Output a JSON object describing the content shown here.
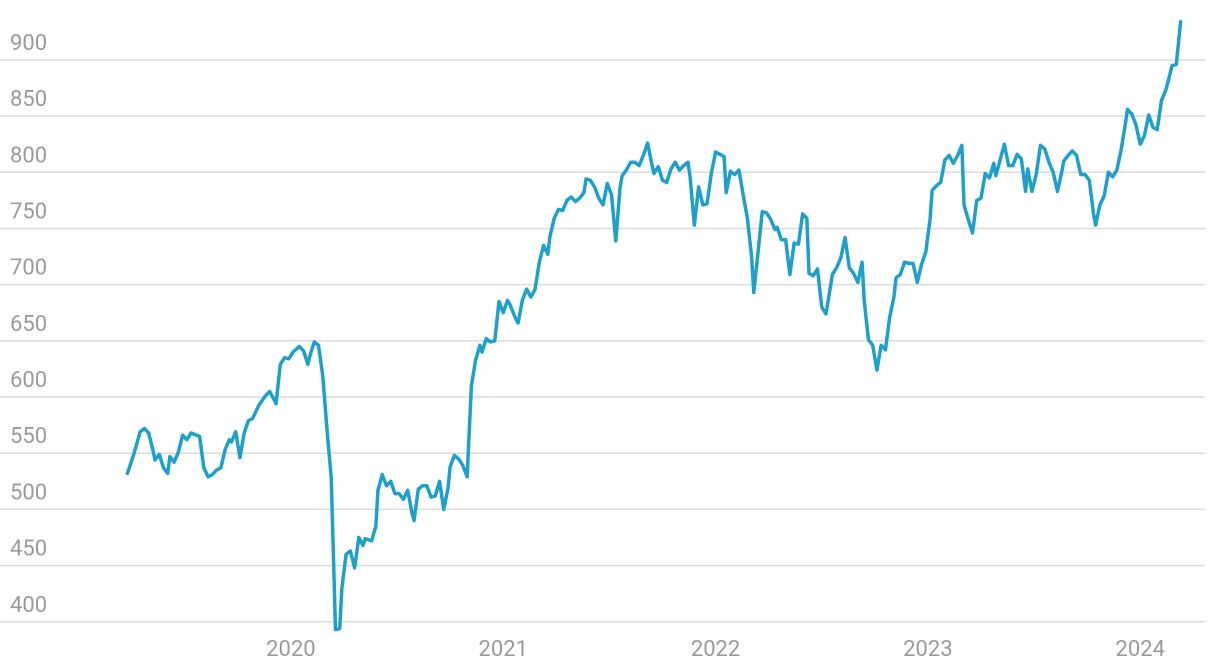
{
  "chart_data": {
    "type": "line",
    "x": [
      2019.23,
      2019.26,
      2019.29,
      2019.31,
      2019.33,
      2019.35,
      2019.36,
      2019.38,
      2019.4,
      2019.42,
      2019.43,
      2019.45,
      2019.47,
      2019.49,
      2019.51,
      2019.53,
      2019.57,
      2019.59,
      2019.61,
      2019.63,
      2019.65,
      2019.67,
      2019.69,
      2019.71,
      2019.72,
      2019.74,
      2019.76,
      2019.78,
      2019.8,
      2019.82,
      2019.85,
      2019.88,
      2019.9,
      2019.92,
      2019.93,
      2019.95,
      2019.97,
      2019.99,
      2020.01,
      2020.04,
      2020.06,
      2020.08,
      2020.09,
      2020.11,
      2020.13,
      2020.15,
      2020.17,
      2020.19,
      2020.21,
      2020.23,
      2020.24,
      2020.26,
      2020.28,
      2020.3,
      2020.32,
      2020.34,
      2020.35,
      2020.38,
      2020.4,
      2020.41,
      2020.43,
      2020.45,
      2020.47,
      2020.49,
      2020.51,
      2020.53,
      2020.55,
      2020.57,
      2020.58,
      2020.6,
      2020.62,
      2020.64,
      2020.66,
      2020.68,
      2020.7,
      2020.72,
      2020.74,
      2020.75,
      2020.77,
      2020.79,
      2020.81,
      2020.83,
      2020.85,
      2020.87,
      2020.89,
      2020.9,
      2020.92,
      2020.94,
      2020.96,
      2020.98,
      2021.0,
      2021.02,
      2021.03,
      2021.06,
      2021.07,
      2021.09,
      2021.11,
      2021.13,
      2021.15,
      2021.17,
      2021.19,
      2021.21,
      2021.22,
      2021.24,
      2021.26,
      2021.28,
      2021.3,
      2021.32,
      2021.34,
      2021.36,
      2021.38,
      2021.39,
      2021.41,
      2021.43,
      2021.45,
      2021.47,
      2021.49,
      2021.51,
      2021.53,
      2021.55,
      2021.56,
      2021.58,
      2021.6,
      2021.62,
      2021.64,
      2021.66,
      2021.68,
      2021.7,
      2021.71,
      2021.73,
      2021.75,
      2021.77,
      2021.79,
      2021.81,
      2021.83,
      2021.85,
      2021.87,
      2021.88,
      2021.9,
      2021.92,
      2021.94,
      2021.96,
      2021.98,
      2022.0,
      2022.02,
      2022.04,
      2022.05,
      2022.07,
      2022.09,
      2022.11,
      2022.13,
      2022.15,
      2022.17,
      2022.18,
      2022.2,
      2022.22,
      2022.24,
      2022.26,
      2022.28,
      2022.29,
      2022.31,
      2022.33,
      2022.35,
      2022.37,
      2022.39,
      2022.41,
      2022.43,
      2022.44,
      2022.46,
      2022.48,
      2022.5,
      2022.52,
      2022.54,
      2022.55,
      2022.57,
      2022.59,
      2022.61,
      2022.63,
      2022.65,
      2022.67,
      2022.69,
      2022.7,
      2022.72,
      2022.74,
      2022.76,
      2022.78,
      2022.8,
      2022.82,
      2022.84,
      2022.85,
      2022.87,
      2022.89,
      2022.91,
      2022.93,
      2022.95,
      2022.97,
      2022.99,
      2023.01,
      2023.02,
      2023.04,
      2023.06,
      2023.08,
      2023.1,
      2023.12,
      2023.14,
      2023.16,
      2023.17,
      2023.19,
      2023.21,
      2023.23,
      2023.25,
      2023.27,
      2023.29,
      2023.31,
      2023.32,
      2023.34,
      2023.36,
      2023.38,
      2023.4,
      2023.42,
      2023.44,
      2023.46,
      2023.47,
      2023.49,
      2023.51,
      2023.53,
      2023.55,
      2023.57,
      2023.59,
      2023.61,
      2023.63,
      2023.64,
      2023.66,
      2023.68,
      2023.7,
      2023.72,
      2023.74,
      2023.76,
      2023.78,
      2023.79,
      2023.81,
      2023.83,
      2023.85,
      2023.87,
      2023.89,
      2023.91,
      2023.93,
      2023.94,
      2023.96,
      2023.98,
      2024.0,
      2024.02,
      2024.04,
      2024.06,
      2024.08,
      2024.1,
      2024.12,
      2024.13,
      2024.15,
      2024.17,
      2024.19
    ],
    "series": [
      {
        "color": "#1fa0cb",
        "values": [
          532,
          549,
          569,
          572,
          568,
          553,
          544,
          549,
          537,
          532,
          547,
          542,
          551,
          566,
          562,
          568,
          565,
          537,
          529,
          531,
          535,
          537,
          553,
          562,
          560,
          569,
          546,
          568,
          579,
          581,
          593,
          601,
          605,
          598,
          594,
          629,
          635,
          634,
          640,
          645,
          641,
          629,
          637,
          649,
          646,
          619,
          571,
          528,
          393,
          394,
          430,
          460,
          463,
          448,
          475,
          468,
          474,
          472,
          485,
          517,
          531,
          521,
          525,
          514,
          514,
          509,
          517,
          497,
          490,
          518,
          521,
          521,
          511,
          512,
          525,
          500,
          519,
          538,
          548,
          545,
          539,
          529,
          610,
          633,
          646,
          640,
          652,
          649,
          650,
          685,
          675,
          686,
          683,
          669,
          666,
          686,
          696,
          689,
          696,
          720,
          735,
          727,
          743,
          759,
          767,
          766,
          775,
          778,
          774,
          777,
          782,
          794,
          793,
          787,
          777,
          771,
          790,
          780,
          739,
          786,
          797,
          802,
          809,
          809,
          806,
          815,
          826,
          807,
          799,
          805,
          793,
          791,
          803,
          809,
          802,
          806,
          809,
          796,
          753,
          787,
          771,
          772,
          799,
          818,
          816,
          814,
          782,
          801,
          798,
          802,
          780,
          759,
          724,
          693,
          729,
          765,
          764,
          758,
          749,
          751,
          740,
          740,
          709,
          737,
          736,
          763,
          759,
          710,
          708,
          714,
          680,
          674,
          697,
          709,
          715,
          724,
          742,
          715,
          710,
          702,
          720,
          686,
          651,
          646,
          624,
          646,
          642,
          671,
          689,
          706,
          709,
          720,
          719,
          719,
          702,
          718,
          729,
          758,
          784,
          788,
          791,
          811,
          815,
          808,
          815,
          824,
          771,
          758,
          746,
          775,
          777,
          799,
          795,
          808,
          797,
          811,
          825,
          806,
          806,
          816,
          812,
          783,
          803,
          783,
          798,
          824,
          821,
          809,
          800,
          783,
          800,
          810,
          815,
          819,
          815,
          798,
          798,
          793,
          763,
          753,
          771,
          779,
          800,
          796,
          802,
          820,
          843,
          856,
          852,
          842,
          825,
          833,
          851,
          840,
          838,
          864,
          873,
          880,
          895,
          896,
          934
        ]
      }
    ],
    "xlim": [
      2018.63,
      2024.305
    ],
    "xticks": [
      2020,
      2021,
      2022,
      2023,
      2024
    ],
    "ylim": [
      390,
      940
    ],
    "yticks": [
      400,
      450,
      500,
      550,
      600,
      650,
      700,
      750,
      800,
      850,
      900
    ],
    "grid": true
  }
}
